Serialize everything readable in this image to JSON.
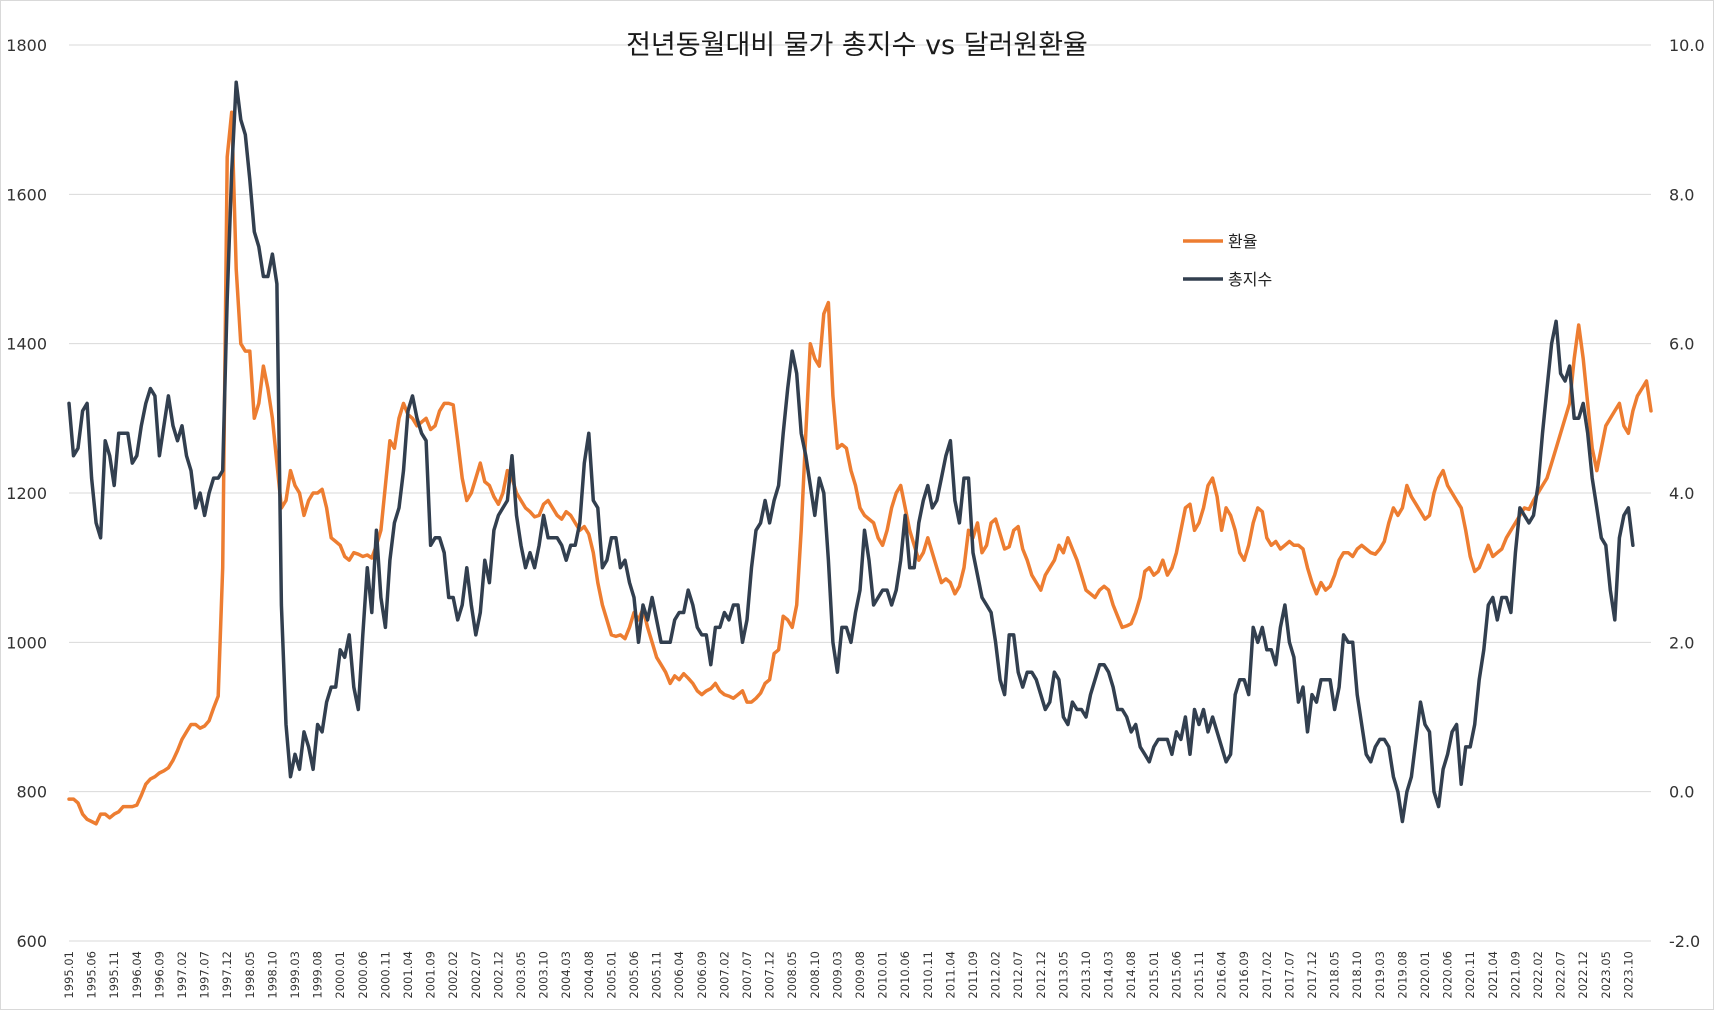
{
  "chart_data": {
    "type": "line",
    "title": "전년동월대비 물가 총지수 vs 달러원환율",
    "xlabel": "",
    "ylabel_left": "",
    "ylabel_right": "",
    "ylim_left": [
      600,
      1800
    ],
    "yticks_left": [
      "600",
      "800",
      "1000",
      "1200",
      "1400",
      "1600",
      "1800"
    ],
    "ylim_right": [
      -2.0,
      10.0
    ],
    "yticks_right": [
      "-2.0",
      "0.0",
      "2.0",
      "4.0",
      "6.0",
      "8.0",
      "10.0"
    ],
    "grid": true,
    "legend_position": "right-upper",
    "x_tick_labels": [
      "1995.01",
      "1995.06",
      "1995.11",
      "1996.04",
      "1996.09",
      "1997.02",
      "1997.07",
      "1997.12",
      "1998.05",
      "1998.10",
      "1999.03",
      "1999.08",
      "2000.01",
      "2000.06",
      "2000.11",
      "2001.04",
      "2001.09",
      "2002.02",
      "2002.07",
      "2002.12",
      "2003.05",
      "2003.10",
      "2004.03",
      "2004.08",
      "2005.01",
      "2005.06",
      "2005.11",
      "2006.04",
      "2006.09",
      "2007.02",
      "2007.07",
      "2007.12",
      "2008.05",
      "2008.10",
      "2009.03",
      "2009.08",
      "2010.01",
      "2010.06",
      "2010.11",
      "2011.04",
      "2011.09",
      "2012.02",
      "2012.07",
      "2012.12",
      "2013.05",
      "2013.10",
      "2014.03",
      "2014.08",
      "2015.01",
      "2015.06",
      "2015.11",
      "2016.04",
      "2016.09",
      "2017.02",
      "2017.07",
      "2017.12",
      "2018.05",
      "2018.10",
      "2019.03",
      "2019.08",
      "2020.01",
      "2020.06",
      "2020.11",
      "2021.04",
      "2021.09",
      "2022.02",
      "2022.07",
      "2022.12",
      "2023.05",
      "2023.10"
    ],
    "series": [
      {
        "name": "환율",
        "axis": "left",
        "color": "#ED7D31",
        "values": [
          790,
          790,
          785,
          770,
          763,
          760,
          757,
          770,
          770,
          765,
          770,
          773,
          780,
          780,
          780,
          782,
          795,
          810,
          817,
          820,
          825,
          828,
          832,
          842,
          855,
          870,
          880,
          890,
          890,
          885,
          888,
          895,
          912,
          928,
          1100,
          1650,
          1710,
          1500,
          1400,
          1390,
          1390,
          1300,
          1320,
          1370,
          1340,
          1300,
          1240,
          1180,
          1190,
          1230,
          1210,
          1200,
          1170,
          1190,
          1200,
          1200,
          1205,
          1180,
          1140,
          1135,
          1130,
          1115,
          1110,
          1120,
          1118,
          1115,
          1117,
          1113,
          1130,
          1150,
          1210,
          1270,
          1260,
          1300,
          1320,
          1305,
          1300,
          1290,
          1295,
          1300,
          1285,
          1290,
          1310,
          1320,
          1320,
          1318,
          1270,
          1220,
          1190,
          1200,
          1220,
          1240,
          1215,
          1210,
          1195,
          1185,
          1200,
          1230,
          1220,
          1200,
          1190,
          1180,
          1175,
          1168,
          1170,
          1185,
          1190,
          1180,
          1170,
          1165,
          1175,
          1170,
          1160,
          1150,
          1155,
          1145,
          1120,
          1080,
          1050,
          1030,
          1010,
          1008,
          1010,
          1005,
          1020,
          1040,
          1030,
          1045,
          1020,
          1000,
          980,
          970,
          960,
          945,
          955,
          950,
          958,
          952,
          945,
          935,
          930,
          935,
          938,
          945,
          935,
          930,
          928,
          925,
          930,
          935,
          920,
          920,
          925,
          932,
          945,
          950,
          985,
          990,
          1035,
          1030,
          1020,
          1050,
          1150,
          1280,
          1400,
          1380,
          1370,
          1440,
          1455,
          1330,
          1260,
          1265,
          1260,
          1230,
          1210,
          1180,
          1170,
          1165,
          1160,
          1140,
          1130,
          1150,
          1180,
          1200,
          1210,
          1180,
          1150,
          1130,
          1110,
          1120,
          1140,
          1120,
          1100,
          1080,
          1085,
          1080,
          1065,
          1075,
          1100,
          1150,
          1140,
          1160,
          1120,
          1130,
          1160,
          1165,
          1145,
          1125,
          1128,
          1150,
          1155,
          1125,
          1110,
          1090,
          1080,
          1070,
          1090,
          1100,
          1110,
          1130,
          1120,
          1140,
          1125,
          1110,
          1090,
          1070,
          1065,
          1060,
          1070,
          1075,
          1070,
          1050,
          1035,
          1020,
          1022,
          1025,
          1040,
          1060,
          1095,
          1100,
          1090,
          1095,
          1110,
          1090,
          1100,
          1120,
          1150,
          1180,
          1185,
          1150,
          1160,
          1180,
          1210,
          1220,
          1195,
          1150,
          1180,
          1170,
          1150,
          1120,
          1110,
          1130,
          1160,
          1180,
          1175,
          1140,
          1130,
          1135,
          1125,
          1130,
          1135,
          1130,
          1130,
          1125,
          1100,
          1080,
          1065,
          1080,
          1070,
          1075,
          1090,
          1110,
          1120,
          1120,
          1115,
          1125,
          1130,
          1125,
          1120,
          1118,
          1125,
          1135,
          1160,
          1180,
          1170,
          1180,
          1210,
          1195,
          1185,
          1175,
          1165,
          1170,
          1200,
          1220,
          1230,
          1210,
          1200,
          1190,
          1180,
          1150,
          1115,
          1095,
          1100,
          1115,
          1130,
          1115,
          1120,
          1125,
          1140,
          1150,
          1160,
          1170,
          1180,
          1178,
          1190,
          1200,
          1210,
          1220,
          1240,
          1260,
          1280,
          1300,
          1320,
          1380,
          1425,
          1380,
          1320,
          1260,
          1230,
          1260,
          1290,
          1300,
          1310,
          1320,
          1290,
          1280,
          1310,
          1330,
          1340,
          1350,
          1310
        ]
      },
      {
        "name": "총지수",
        "axis": "right",
        "color": "#323F4F",
        "values": [
          5.2,
          4.5,
          4.6,
          5.1,
          5.2,
          4.2,
          3.6,
          3.4,
          4.7,
          4.5,
          4.1,
          4.8,
          4.8,
          4.8,
          4.4,
          4.5,
          4.9,
          5.2,
          5.4,
          5.3,
          4.5,
          4.9,
          5.3,
          4.9,
          4.7,
          4.9,
          4.5,
          4.3,
          3.8,
          4.0,
          3.7,
          4.0,
          4.2,
          4.2,
          4.3,
          6.6,
          8.3,
          9.5,
          9.0,
          8.8,
          8.2,
          7.5,
          7.3,
          6.9,
          6.9,
          7.2,
          6.8,
          2.5,
          0.9,
          0.2,
          0.5,
          0.3,
          0.8,
          0.6,
          0.3,
          0.9,
          0.8,
          1.2,
          1.4,
          1.4,
          1.9,
          1.8,
          2.1,
          1.4,
          1.1,
          2.1,
          3.0,
          2.4,
          3.5,
          2.6,
          2.2,
          3.1,
          3.6,
          3.8,
          4.3,
          5.1,
          5.3,
          5.0,
          4.8,
          4.7,
          3.3,
          3.4,
          3.4,
          3.2,
          2.6,
          2.6,
          2.3,
          2.5,
          3.0,
          2.5,
          2.1,
          2.4,
          3.1,
          2.8,
          3.5,
          3.7,
          3.8,
          3.9,
          4.5,
          3.7,
          3.3,
          3.0,
          3.2,
          3.0,
          3.3,
          3.7,
          3.4,
          3.4,
          3.4,
          3.3,
          3.1,
          3.3,
          3.3,
          3.6,
          4.4,
          4.8,
          3.9,
          3.8,
          3.0,
          3.1,
          3.4,
          3.4,
          3.0,
          3.1,
          2.8,
          2.6,
          2.0,
          2.5,
          2.3,
          2.6,
          2.3,
          2.0,
          2.0,
          2.0,
          2.3,
          2.4,
          2.4,
          2.7,
          2.5,
          2.2,
          2.1,
          2.1,
          1.7,
          2.2,
          2.2,
          2.4,
          2.3,
          2.5,
          2.5,
          2.0,
          2.3,
          3.0,
          3.5,
          3.6,
          3.9,
          3.6,
          3.9,
          4.1,
          4.8,
          5.4,
          5.9,
          5.6,
          4.8,
          4.5,
          4.1,
          3.7,
          4.2,
          4.0,
          3.1,
          2.0,
          1.6,
          2.2,
          2.2,
          2.0,
          2.4,
          2.7,
          3.5,
          3.1,
          2.5,
          2.6,
          2.7,
          2.7,
          2.5,
          2.7,
          3.1,
          3.7,
          3.0,
          3.0,
          3.6,
          3.9,
          4.1,
          3.8,
          3.9,
          4.2,
          4.5,
          4.7,
          3.9,
          3.6,
          4.2,
          4.2,
          3.2,
          2.9,
          2.6,
          2.5,
          2.4,
          2.0,
          1.5,
          1.3,
          2.1,
          2.1,
          1.6,
          1.4,
          1.6,
          1.6,
          1.5,
          1.3,
          1.1,
          1.2,
          1.6,
          1.5,
          1.0,
          0.9,
          1.2,
          1.1,
          1.1,
          1.0,
          1.3,
          1.5,
          1.7,
          1.7,
          1.6,
          1.4,
          1.1,
          1.1,
          1.0,
          0.8,
          0.9,
          0.6,
          0.5,
          0.4,
          0.6,
          0.7,
          0.7,
          0.7,
          0.5,
          0.8,
          0.7,
          1.0,
          0.5,
          1.1,
          0.9,
          1.1,
          0.8,
          1.0,
          0.8,
          0.6,
          0.4,
          0.5,
          1.3,
          1.5,
          1.5,
          1.3,
          2.2,
          2.0,
          2.2,
          1.9,
          1.9,
          1.7,
          2.2,
          2.5,
          2.0,
          1.8,
          1.2,
          1.4,
          0.8,
          1.3,
          1.2,
          1.5,
          1.5,
          1.5,
          1.1,
          1.4,
          2.1,
          2.0,
          2.0,
          1.3,
          0.9,
          0.5,
          0.4,
          0.6,
          0.7,
          0.7,
          0.6,
          0.2,
          0.0,
          -0.4,
          0.0,
          0.2,
          0.7,
          1.2,
          0.9,
          0.8,
          0.0,
          -0.2,
          0.3,
          0.5,
          0.8,
          0.9,
          0.1,
          0.6,
          0.6,
          0.9,
          1.5,
          1.9,
          2.5,
          2.6,
          2.3,
          2.6,
          2.6,
          2.4,
          3.2,
          3.8,
          3.7,
          3.6,
          3.7,
          4.1,
          4.8,
          5.4,
          6.0,
          6.3,
          5.6,
          5.5,
          5.7,
          5.0,
          5.0,
          5.2,
          4.8,
          4.2,
          3.8,
          3.4,
          3.3,
          2.7,
          2.3,
          3.4,
          3.7,
          3.8,
          3.3
        ]
      }
    ]
  }
}
